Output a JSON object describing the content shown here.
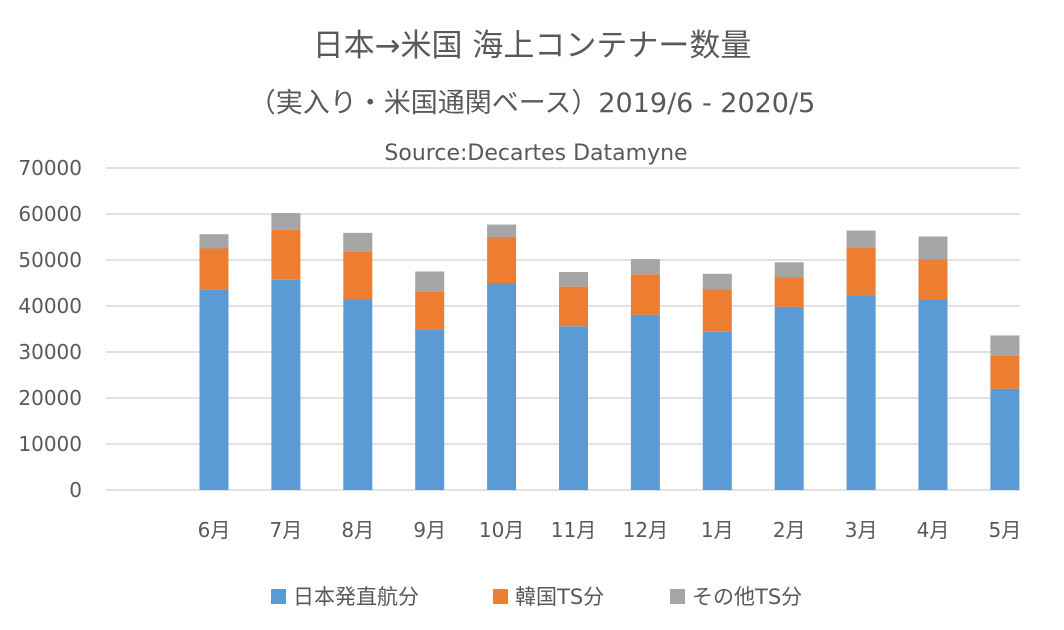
{
  "chart_data": {
    "type": "bar",
    "stacked": true,
    "title": "日本→米国 海上コンテナー数量",
    "subtitle": "（実入り・米国通関ベース）2019/6 - 2020/5",
    "source": "Source:Decartes Datamyne",
    "categories": [
      "6月",
      "7月",
      "8月",
      "9月",
      "10月",
      "11月",
      "12月",
      "1月",
      "2月",
      "3月",
      "4月",
      "5月"
    ],
    "series": [
      {
        "name": "日本発直航分",
        "color": "#5B9BD5",
        "values": [
          43500,
          45700,
          41300,
          34800,
          45000,
          35600,
          38100,
          34400,
          39800,
          42300,
          41400,
          22000
        ]
      },
      {
        "name": "韓国TS分",
        "color": "#ED7D31",
        "values": [
          9000,
          10900,
          10600,
          8400,
          10000,
          8600,
          8800,
          9200,
          6400,
          10300,
          8800,
          7200
        ]
      },
      {
        "name": "その他TS分",
        "color": "#A5A5A5",
        "values": [
          3100,
          3600,
          4000,
          4300,
          2700,
          3200,
          3300,
          3400,
          3300,
          3800,
          4900,
          4400
        ]
      }
    ],
    "ylim": [
      0,
      70000
    ],
    "yticks": [
      "70000",
      "60000",
      "50000",
      "40000",
      "30000",
      "20000",
      "10000",
      "0"
    ],
    "grid": true,
    "legend_position": "bottom"
  }
}
